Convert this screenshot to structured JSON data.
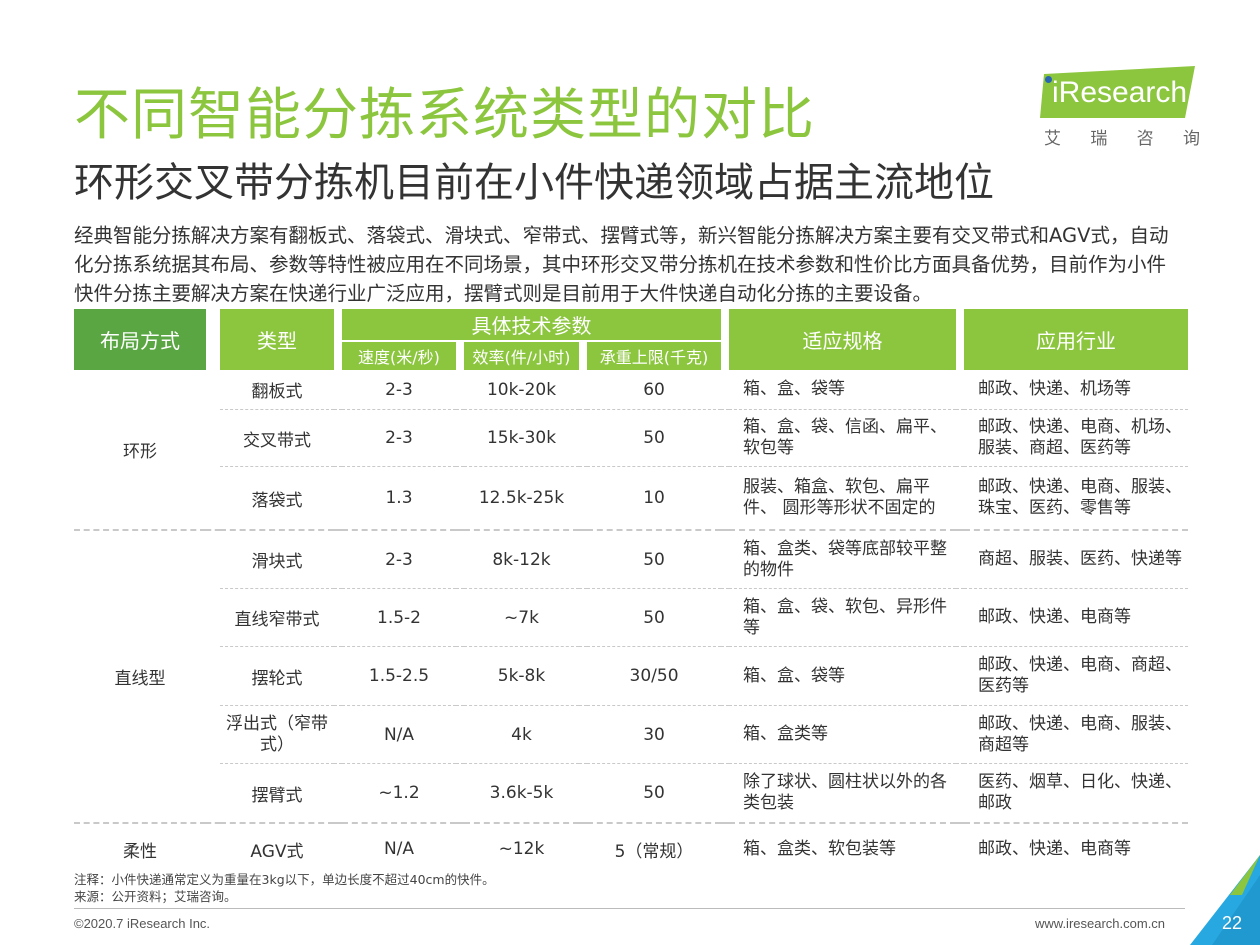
{
  "title": "不同智能分拣系统类型的对比",
  "subtitle": "环形交叉带分拣机目前在小件快递领域占据主流地位",
  "intro": "经典智能分拣解决方案有翻板式、落袋式、滑块式、窄带式、摆臂式等，新兴智能分拣解决方案主要有交叉带式和AGV式，自动化分拣系统据其布局、参数等特性被应用在不同场景，其中环形交叉带分拣机在技术参数和性价比方面具备优势，目前作为小件快件分拣主要解决方案在快递行业广泛应用，摆臂式则是目前用于大件快递自动化分拣的主要设备。",
  "logo": {
    "brand": "iResearch",
    "cn": [
      "艾",
      "瑞",
      "咨",
      "询"
    ]
  },
  "table": {
    "headers": {
      "layout": "布局方式",
      "type": "类型",
      "tech": "具体技术参数",
      "speed": "速度(米/秒)",
      "efficiency": "效率(件/小时)",
      "load": "承重上限(千克)",
      "spec": "适应规格",
      "industry": "应用行业"
    },
    "groups": {
      "ring": "环形",
      "linear": "直线型",
      "flexible": "柔性"
    },
    "rows": [
      {
        "type": "翻板式",
        "speed": "2-3",
        "eff": "10k-20k",
        "load": "60",
        "spec": "箱、盒、袋等",
        "industry": "邮政、快递、机场等"
      },
      {
        "type": "交叉带式",
        "speed": "2-3",
        "eff": "15k-30k",
        "load": "50",
        "spec": "箱、盒、袋、信函、扁平、软包等",
        "industry": "邮政、快递、电商、机场、 服装、商超、医药等"
      },
      {
        "type": "落袋式",
        "speed": "1.3",
        "eff": "12.5k-25k",
        "load": "10",
        "spec": "服装、箱盒、软包、扁平件、 圆形等形状不固定的",
        "industry": "邮政、快递、电商、服装、 珠宝、医药、零售等"
      },
      {
        "type": "滑块式",
        "speed": "2-3",
        "eff": "8k-12k",
        "load": "50",
        "spec": "箱、盒类、袋等底部较平整的物件",
        "industry": "商超、服装、医药、快递等"
      },
      {
        "type": "直线窄带式",
        "speed": "1.5-2",
        "eff": "~7k",
        "load": "50",
        "spec": "箱、盒、袋、软包、异形件等",
        "industry": "邮政、快递、电商等"
      },
      {
        "type": "摆轮式",
        "speed": "1.5-2.5",
        "eff": "5k-8k",
        "load": "30/50",
        "spec": "箱、盒、袋等",
        "industry": "邮政、快递、电商、商超、医药等"
      },
      {
        "type": "浮出式（窄带式）",
        "speed": "N/A",
        "eff": "4k",
        "load": "30",
        "spec": "箱、盒类等",
        "industry": "邮政、快递、电商、服装、商超等"
      },
      {
        "type": "摆臂式",
        "speed": "~1.2",
        "eff": "3.6k-5k",
        "load": "50",
        "spec": "除了球状、圆柱状以外的各类包装",
        "industry": "医药、烟草、日化、快递、邮政"
      },
      {
        "type": "AGV式",
        "speed": "N/A",
        "eff": "~12k",
        "load": "5（常规）",
        "spec": "箱、盒类、软包装等",
        "industry": "邮政、快递、电商等"
      }
    ]
  },
  "footnote": {
    "note": "注释：小件快递通常定义为重量在3kg以下，单边长度不超过40cm的快件。",
    "source": "来源：公开资料；艾瑞咨询。"
  },
  "footer": {
    "copyright": "©2020.7 iResearch Inc.",
    "website": "www.iresearch.com.cn",
    "page": "22"
  },
  "colors": {
    "accent": "#8cc63f",
    "dark_green": "#5aa643",
    "corner": "#27a8e0"
  }
}
